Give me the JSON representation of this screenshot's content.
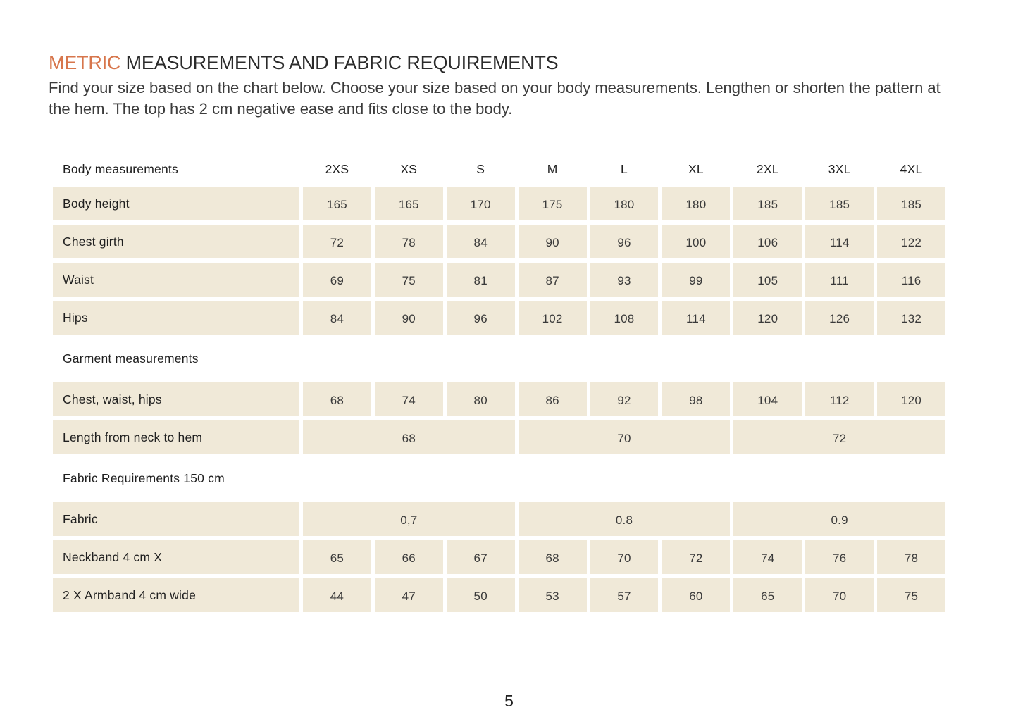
{
  "colors": {
    "accent": "#D7764C",
    "cell_bg": "#F0E9D8",
    "heading_text": "#2B2B2B",
    "body_text": "#3C3C3C",
    "label_text": "#1F1F1F",
    "value_text": "#3A3A3A"
  },
  "header": {
    "title_highlight": "METRIC",
    "title_rest": "MEASUREMENTS AND FABRIC REQUIREMENTS",
    "intro": "Find your size based on the chart below. Choose your size based on your body measurements. Lengthen or shorten the pattern at the hem. The top has 2 cm negative ease and fits close to the body."
  },
  "table": {
    "corner_label": "Body measurements",
    "columns": [
      "2XS",
      "XS",
      "S",
      "M",
      "L",
      "XL",
      "2XL",
      "3XL",
      "4XL"
    ],
    "rows": [
      {
        "type": "data",
        "label": "Body height",
        "values": [
          "165",
          "165",
          "170",
          "175",
          "180",
          "180",
          "185",
          "185",
          "185"
        ]
      },
      {
        "type": "data",
        "label": "Chest girth",
        "values": [
          "72",
          "78",
          "84",
          "90",
          "96",
          "100",
          "106",
          "114",
          "122"
        ]
      },
      {
        "type": "data",
        "label": "Waist",
        "values": [
          "69",
          "75",
          "81",
          "87",
          "93",
          "99",
          "105",
          "111",
          "116"
        ]
      },
      {
        "type": "data",
        "label": "Hips",
        "values": [
          "84",
          "90",
          "96",
          "102",
          "108",
          "114",
          "120",
          "126",
          "132"
        ]
      },
      {
        "type": "section",
        "label": "Garment measurements"
      },
      {
        "type": "data",
        "label": "Chest, waist, hips",
        "values": [
          "68",
          "74",
          "80",
          "86",
          "92",
          "98",
          "104",
          "112",
          "120"
        ]
      },
      {
        "type": "merged",
        "label": "Length from neck to hem",
        "values": [
          "68",
          "70",
          "72"
        ],
        "span": 3
      },
      {
        "type": "section",
        "label": "Fabric Requirements 150 cm"
      },
      {
        "type": "merged",
        "label": "Fabric",
        "values": [
          "0,7",
          "0.8",
          "0.9"
        ],
        "span": 3
      },
      {
        "type": "data",
        "label": "Neckband 4 cm X",
        "values": [
          "65",
          "66",
          "67",
          "68",
          "70",
          "72",
          "74",
          "76",
          "78"
        ]
      },
      {
        "type": "data",
        "label": "2 X Armband 4 cm wide",
        "values": [
          "44",
          "47",
          "50",
          "53",
          "57",
          "60",
          "65",
          "70",
          "75"
        ]
      }
    ]
  },
  "footer": {
    "page_number": "5"
  }
}
